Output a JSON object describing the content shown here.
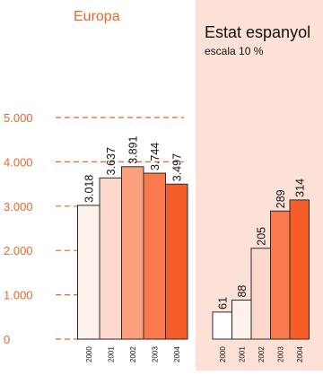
{
  "chart_data": [
    {
      "type": "bar",
      "title": "Europa",
      "categories": [
        "2000",
        "2001",
        "2002",
        "2003",
        "2004"
      ],
      "values": [
        3018,
        3637,
        3891,
        3744,
        3497
      ],
      "value_labels": [
        "3.018",
        "3.637",
        "3.891",
        "3.744",
        "3.497"
      ],
      "ylim": [
        0,
        5000
      ],
      "yticks": [
        0,
        1000,
        2000,
        3000,
        4000,
        5000
      ],
      "ytick_labels": [
        "0",
        "1.000",
        "2.000",
        "3.000",
        "4.000",
        "5.000"
      ],
      "grid": "dashed orange horizontal lines at ticks",
      "bar_colors": [
        "#fdf1ec",
        "#fcd9cc",
        "#fba07f",
        "#fa7a4e",
        "#f55e27"
      ]
    },
    {
      "type": "bar",
      "title": "Estat espanyol",
      "subtitle": "escala 10 %",
      "categories": [
        "2000",
        "2001",
        "2002",
        "2003",
        "2004"
      ],
      "values": [
        61,
        88,
        205,
        289,
        314
      ],
      "value_labels": [
        "61",
        "88",
        "205",
        "289",
        "314"
      ],
      "ylim": [
        0,
        500
      ],
      "bar_colors": [
        "#ffffff",
        "#fdf1ec",
        "#fcd9cc",
        "#fa7a4e",
        "#f55e27"
      ],
      "background": "#fde1d6"
    }
  ]
}
